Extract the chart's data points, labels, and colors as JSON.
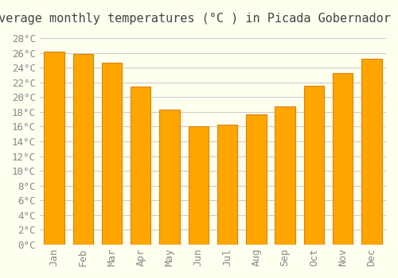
{
  "title": "Average monthly temperatures (°C ) in Picada Gobernador López",
  "months": [
    "Jan",
    "Feb",
    "Mar",
    "Apr",
    "May",
    "Jun",
    "Jul",
    "Aug",
    "Sep",
    "Oct",
    "Nov",
    "Dec"
  ],
  "values": [
    26.2,
    25.9,
    24.7,
    21.4,
    18.3,
    16.0,
    16.3,
    17.7,
    18.8,
    21.6,
    23.3,
    25.2
  ],
  "bar_color": "#FFA500",
  "bar_edge_color": "#E08000",
  "background_color": "#FFFFF0",
  "grid_color": "#CCCCCC",
  "ylim": [
    0,
    29
  ],
  "ytick_step": 2,
  "title_fontsize": 11,
  "tick_fontsize": 9,
  "font_family": "monospace"
}
